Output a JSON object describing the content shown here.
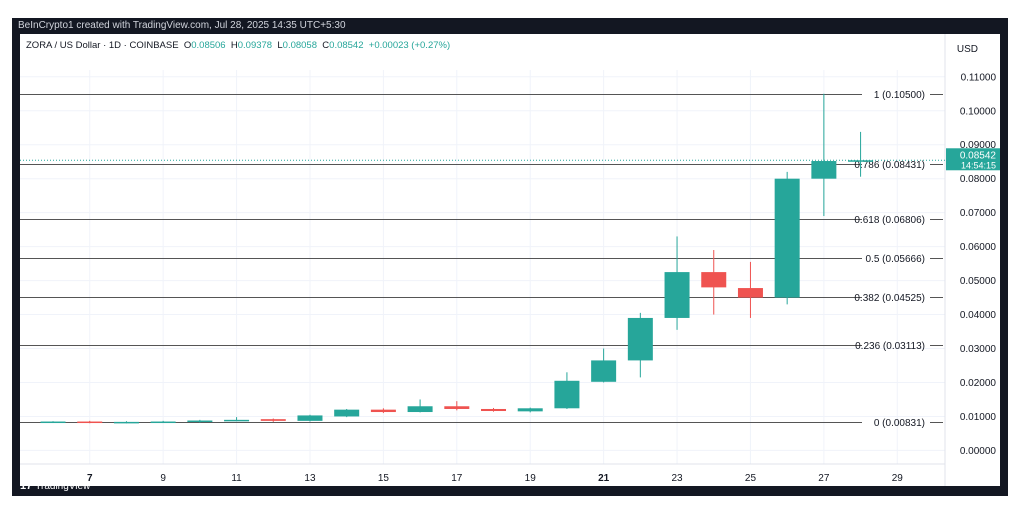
{
  "header": {
    "attribution": "BeInCrypto1 created with TradingView.com, Jul 28, 2025 14:35 UTC+5:30"
  },
  "legend": {
    "symbol": "ZORA / US Dollar · 1D · COINBASE",
    "open_label": "O",
    "open": "0.08506",
    "high_label": "H",
    "high": "0.09378",
    "low_label": "L",
    "low": "0.08058",
    "close_label": "C",
    "close": "0.08542",
    "change": "+0.00023 (+0.27%)"
  },
  "currency": "USD",
  "price_tag": {
    "price": "0.08542",
    "countdown": "14:54:15"
  },
  "footer": {
    "brand": "TradingView",
    "logo": "17"
  },
  "colors": {
    "up": "#26a69a",
    "down": "#ef5350",
    "fib": "#555555",
    "axis_text": "#131722",
    "grid": "#f0f3fa"
  },
  "chart_data": {
    "type": "candlestick",
    "ylim": [
      -0.004,
      0.112
    ],
    "y_ticks": [
      "0.00000",
      "0.01000",
      "0.02000",
      "0.03000",
      "0.04000",
      "0.05000",
      "0.06000",
      "0.07000",
      "0.08000",
      "0.09000",
      "0.10000",
      "0.11000"
    ],
    "x_ticks": [
      {
        "day": 7,
        "label": "7",
        "bold": true
      },
      {
        "day": 9,
        "label": "9",
        "bold": false
      },
      {
        "day": 11,
        "label": "11",
        "bold": false
      },
      {
        "day": 13,
        "label": "13",
        "bold": false
      },
      {
        "day": 15,
        "label": "15",
        "bold": false
      },
      {
        "day": 17,
        "label": "17",
        "bold": false
      },
      {
        "day": 19,
        "label": "19",
        "bold": false
      },
      {
        "day": 21,
        "label": "21",
        "bold": true
      },
      {
        "day": 23,
        "label": "23",
        "bold": false
      },
      {
        "day": 25,
        "label": "25",
        "bold": false
      },
      {
        "day": 27,
        "label": "27",
        "bold": false
      },
      {
        "day": 29,
        "label": "29",
        "bold": false
      }
    ],
    "fib_levels": [
      {
        "label": "1 (0.10500)",
        "value": 0.105
      },
      {
        "label": "0.786 (0.08431)",
        "value": 0.08431
      },
      {
        "label": "0.618 (0.06806)",
        "value": 0.06806
      },
      {
        "label": "0.5 (0.05666)",
        "value": 0.05666
      },
      {
        "label": "0.382 (0.04525)",
        "value": 0.04525
      },
      {
        "label": "0.236 (0.03113)",
        "value": 0.03113
      },
      {
        "label": "0 (0.00831)",
        "value": 0.00831
      }
    ],
    "candles": [
      {
        "day": 6,
        "o": 0.0084,
        "h": 0.0086,
        "l": 0.0081,
        "c": 0.0085
      },
      {
        "day": 7,
        "o": 0.0085,
        "h": 0.0087,
        "l": 0.008,
        "c": 0.0082
      },
      {
        "day": 8,
        "o": 0.0082,
        "h": 0.0086,
        "l": 0.008,
        "c": 0.0084
      },
      {
        "day": 9,
        "o": 0.0084,
        "h": 0.0087,
        "l": 0.0082,
        "c": 0.0085
      },
      {
        "day": 10,
        "o": 0.0084,
        "h": 0.009,
        "l": 0.0082,
        "c": 0.0088
      },
      {
        "day": 11,
        "o": 0.0088,
        "h": 0.0098,
        "l": 0.0086,
        "c": 0.009
      },
      {
        "day": 12,
        "o": 0.0092,
        "h": 0.0094,
        "l": 0.0084,
        "c": 0.0087
      },
      {
        "day": 13,
        "o": 0.0087,
        "h": 0.0105,
        "l": 0.0085,
        "c": 0.0103
      },
      {
        "day": 14,
        "o": 0.01,
        "h": 0.0122,
        "l": 0.0098,
        "c": 0.012
      },
      {
        "day": 15,
        "o": 0.012,
        "h": 0.0124,
        "l": 0.011,
        "c": 0.0113
      },
      {
        "day": 16,
        "o": 0.0113,
        "h": 0.015,
        "l": 0.0112,
        "c": 0.013
      },
      {
        "day": 17,
        "o": 0.013,
        "h": 0.0145,
        "l": 0.0118,
        "c": 0.0122
      },
      {
        "day": 18,
        "o": 0.0122,
        "h": 0.0125,
        "l": 0.0114,
        "c": 0.0116
      },
      {
        "day": 19,
        "o": 0.0115,
        "h": 0.0126,
        "l": 0.0112,
        "c": 0.0124
      },
      {
        "day": 20,
        "o": 0.0124,
        "h": 0.023,
        "l": 0.0122,
        "c": 0.0205
      },
      {
        "day": 21,
        "o": 0.0202,
        "h": 0.03,
        "l": 0.02,
        "c": 0.0265
      },
      {
        "day": 22,
        "o": 0.0265,
        "h": 0.0405,
        "l": 0.0215,
        "c": 0.039
      },
      {
        "day": 23,
        "o": 0.039,
        "h": 0.063,
        "l": 0.0355,
        "c": 0.0525
      },
      {
        "day": 24,
        "o": 0.0525,
        "h": 0.059,
        "l": 0.04,
        "c": 0.048
      },
      {
        "day": 25,
        "o": 0.0478,
        "h": 0.0555,
        "l": 0.039,
        "c": 0.045
      },
      {
        "day": 26,
        "o": 0.045,
        "h": 0.082,
        "l": 0.043,
        "c": 0.08
      },
      {
        "day": 27,
        "o": 0.08,
        "h": 0.105,
        "l": 0.069,
        "c": 0.0852
      },
      {
        "day": 28,
        "o": 0.08506,
        "h": 0.09378,
        "l": 0.08058,
        "c": 0.08542
      }
    ]
  }
}
